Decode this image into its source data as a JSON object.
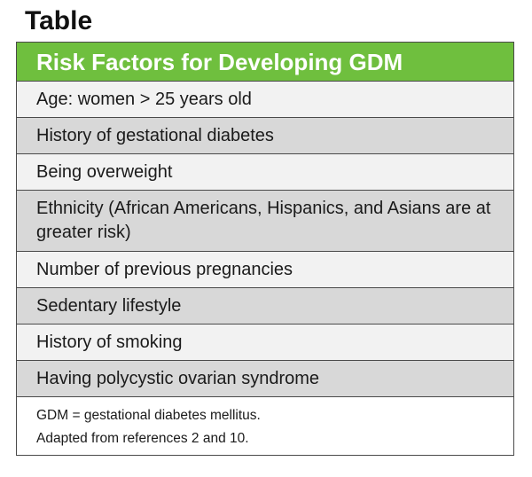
{
  "title": "Table",
  "table": {
    "header": "Risk Factors for Developing GDM",
    "rows": [
      "Age: women > 25 years old",
      "History of gestational diabetes",
      "Being overweight",
      "Ethnicity (African Americans, Hispanics, and Asians are at greater risk)",
      "Number of previous pregnancies",
      "Sedentary lifestyle",
      "History of smoking",
      "Having polycystic ovarian syndrome"
    ],
    "notes": [
      "GDM = gestational diabetes mellitus.",
      "Adapted from references 2 and 10."
    ]
  },
  "colors": {
    "header_bg": "#6fbf3e",
    "row_light": "#f2f2f2",
    "row_dark": "#d8d8d8"
  }
}
